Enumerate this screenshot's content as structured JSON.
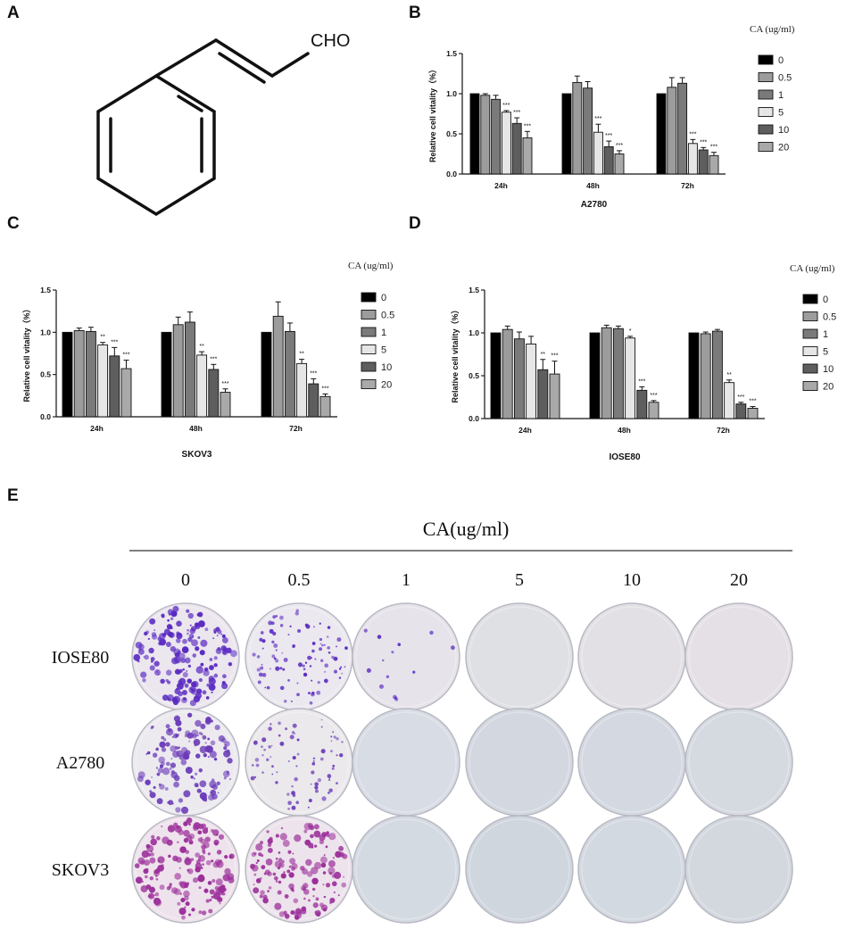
{
  "panel_letters": {
    "a": "A",
    "b": "B",
    "c": "C",
    "d": "D",
    "e": "E"
  },
  "structure": {
    "cho_label": "CHO"
  },
  "legend": {
    "title": "CA (ug/ml)",
    "labels": [
      "0",
      "0.5",
      "1",
      "5",
      "10",
      "20"
    ]
  },
  "chart_data": [
    {
      "type": "bar",
      "panel": "B",
      "title": "A2780",
      "ylabel": "Relative cell vitality（%）",
      "ylim": [
        0,
        1.5
      ],
      "yticks": [
        "0.0",
        "0.5",
        "1.0",
        "1.5"
      ],
      "categories": [
        "24h",
        "48h",
        "72h"
      ],
      "series": [
        {
          "name": "0",
          "color": "#000000",
          "values": [
            1.0,
            1.0,
            1.0
          ],
          "errors": [
            0,
            0,
            0
          ],
          "sig": [
            "",
            "",
            ""
          ]
        },
        {
          "name": "0.5",
          "color": "#9c9c9c",
          "values": [
            0.98,
            1.14,
            1.08
          ],
          "errors": [
            0.02,
            0.08,
            0.12
          ],
          "sig": [
            "",
            "",
            ""
          ]
        },
        {
          "name": "1",
          "color": "#7a7a7a",
          "values": [
            0.93,
            1.07,
            1.13
          ],
          "errors": [
            0.05,
            0.08,
            0.07
          ],
          "sig": [
            "",
            "",
            ""
          ]
        },
        {
          "name": "5",
          "color": "#e6e6e6",
          "values": [
            0.77,
            0.52,
            0.38
          ],
          "errors": [
            0.02,
            0.1,
            0.05
          ],
          "sig": [
            "***",
            "***",
            "***"
          ]
        },
        {
          "name": "10",
          "color": "#5e5e5e",
          "values": [
            0.63,
            0.34,
            0.3
          ],
          "errors": [
            0.07,
            0.07,
            0.03
          ],
          "sig": [
            "***",
            "***",
            "***"
          ]
        },
        {
          "name": "20",
          "color": "#a9a9a9",
          "values": [
            0.45,
            0.25,
            0.23
          ],
          "errors": [
            0.08,
            0.04,
            0.04
          ],
          "sig": [
            "***",
            "***",
            "***"
          ]
        }
      ]
    },
    {
      "type": "bar",
      "panel": "C",
      "title": "SKOV3",
      "ylabel": "Relative cell vitality（%）",
      "ylim": [
        0,
        1.5
      ],
      "yticks": [
        "0.0",
        "0.5",
        "1.0",
        "1.5"
      ],
      "categories": [
        "24h",
        "48h",
        "72h"
      ],
      "series": [
        {
          "name": "0",
          "color": "#000000",
          "values": [
            1.0,
            1.0,
            1.0
          ],
          "errors": [
            0,
            0,
            0
          ],
          "sig": [
            "",
            "",
            ""
          ]
        },
        {
          "name": "0.5",
          "color": "#9c9c9c",
          "values": [
            1.02,
            1.09,
            1.19
          ],
          "errors": [
            0.03,
            0.09,
            0.17
          ],
          "sig": [
            "",
            "",
            ""
          ]
        },
        {
          "name": "1",
          "color": "#7a7a7a",
          "values": [
            1.01,
            1.12,
            1.01
          ],
          "errors": [
            0.05,
            0.12,
            0.1
          ],
          "sig": [
            "",
            "",
            ""
          ]
        },
        {
          "name": "5",
          "color": "#e6e6e6",
          "values": [
            0.85,
            0.73,
            0.63
          ],
          "errors": [
            0.03,
            0.04,
            0.05
          ],
          "sig": [
            "**",
            "**",
            "**"
          ]
        },
        {
          "name": "10",
          "color": "#5e5e5e",
          "values": [
            0.72,
            0.56,
            0.39
          ],
          "errors": [
            0.1,
            0.06,
            0.06
          ],
          "sig": [
            "***",
            "***",
            "***"
          ]
        },
        {
          "name": "20",
          "color": "#a9a9a9",
          "values": [
            0.57,
            0.29,
            0.24
          ],
          "errors": [
            0.1,
            0.04,
            0.03
          ],
          "sig": [
            "***",
            "***",
            "***"
          ]
        }
      ]
    },
    {
      "type": "bar",
      "panel": "D",
      "title": "IOSE80",
      "ylabel": "Relative cell vitality（%）",
      "ylim": [
        0,
        1.5
      ],
      "yticks": [
        "0.0",
        "0.5",
        "1.0",
        "1.5"
      ],
      "categories": [
        "24h",
        "48h",
        "72h"
      ],
      "series": [
        {
          "name": "0",
          "color": "#000000",
          "values": [
            1.0,
            1.0,
            1.0
          ],
          "errors": [
            0,
            0,
            0
          ],
          "sig": [
            "",
            "",
            ""
          ]
        },
        {
          "name": "0.5",
          "color": "#9c9c9c",
          "values": [
            1.04,
            1.06,
            0.99
          ],
          "errors": [
            0.04,
            0.03,
            0.02
          ],
          "sig": [
            "",
            "",
            ""
          ]
        },
        {
          "name": "1",
          "color": "#7a7a7a",
          "values": [
            0.93,
            1.05,
            1.02
          ],
          "errors": [
            0.08,
            0.03,
            0.02
          ],
          "sig": [
            "",
            "",
            ""
          ]
        },
        {
          "name": "5",
          "color": "#e6e6e6",
          "values": [
            0.87,
            0.94,
            0.42
          ],
          "errors": [
            0.09,
            0.02,
            0.03
          ],
          "sig": [
            "",
            "*",
            "**"
          ]
        },
        {
          "name": "10",
          "color": "#5e5e5e",
          "values": [
            0.57,
            0.33,
            0.17
          ],
          "errors": [
            0.12,
            0.04,
            0.02
          ],
          "sig": [
            "**",
            "***",
            "***"
          ]
        },
        {
          "name": "20",
          "color": "#a9a9a9",
          "values": [
            0.52,
            0.19,
            0.12
          ],
          "errors": [
            0.15,
            0.02,
            0.02
          ],
          "sig": [
            "***",
            "***",
            "***"
          ]
        }
      ]
    }
  ],
  "colony_assay": {
    "title": "CA(ug/ml)",
    "columns": [
      "0",
      "0.5",
      "1",
      "5",
      "10",
      "20"
    ],
    "rows": [
      {
        "label": "IOSE80",
        "plate_tint": [
          "#ece6ee",
          "#ece8ef",
          "#e7e3ea",
          "#dfe0e4",
          "#e3e0e5",
          "#e5e0e5"
        ],
        "colony_density": [
          1.0,
          0.55,
          0.08,
          0,
          0,
          0
        ],
        "colony_color": "#5a2bc2"
      },
      {
        "label": "A2780",
        "plate_tint": [
          "#eceaef",
          "#ebe9ec",
          "#d8dce4",
          "#d3d8e0",
          "#d4d9e1",
          "#d5dae1"
        ],
        "colony_density": [
          0.8,
          0.45,
          0,
          0,
          0,
          0
        ],
        "colony_color": "#6a3ab8"
      },
      {
        "label": "SKOV3",
        "plate_tint": [
          "#eee3ec",
          "#ede3ec",
          "#d4dae1",
          "#cfd6de",
          "#d3d9e0",
          "#d2d8de"
        ],
        "colony_density": [
          1.0,
          0.85,
          0,
          0,
          0,
          0
        ],
        "colony_color": "#9b2f9a"
      }
    ]
  }
}
